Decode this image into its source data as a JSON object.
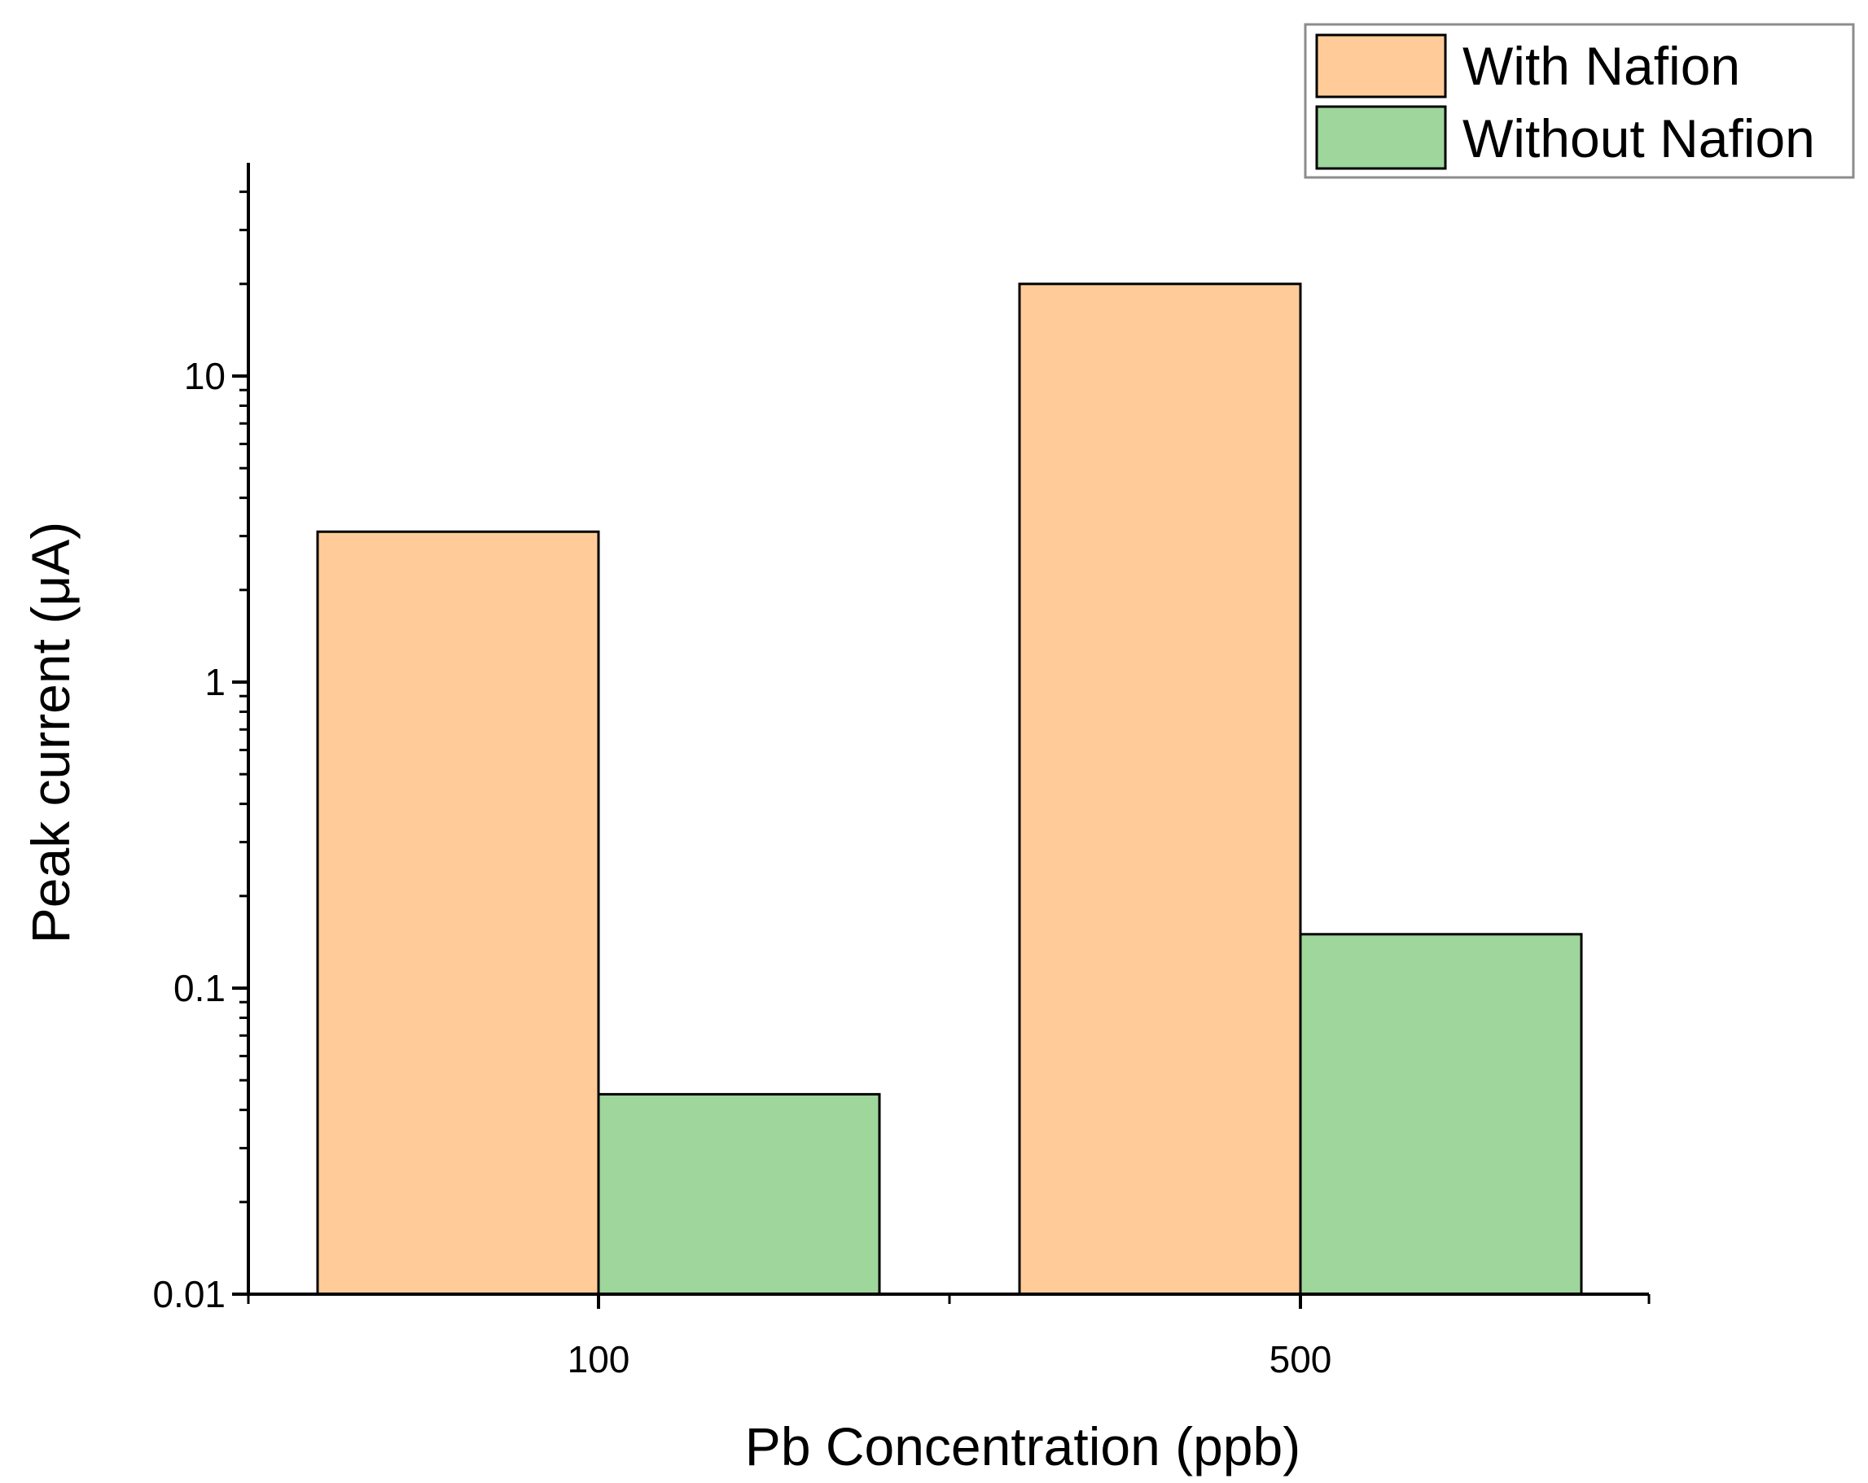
{
  "chart_data": {
    "type": "bar",
    "categories": [
      "100",
      "500"
    ],
    "series": [
      {
        "name": "With Nafion",
        "values": [
          3.1,
          20
        ],
        "color": "#FFCC99"
      },
      {
        "name": "Without Nafion",
        "values": [
          0.045,
          0.15
        ],
        "color": "#9ED69B"
      }
    ],
    "xlabel": "Pb Concentration (ppb)",
    "ylabel": "Peak current (μA)",
    "yscale": "log",
    "ylim": [
      0.01,
      50
    ],
    "yticks": [
      {
        "value": 0.01,
        "label": "0.01"
      },
      {
        "value": 0.1,
        "label": "0.1"
      },
      {
        "value": 1,
        "label": "1"
      },
      {
        "value": 10,
        "label": "10"
      }
    ],
    "legend": "top-right",
    "grid": false
  }
}
